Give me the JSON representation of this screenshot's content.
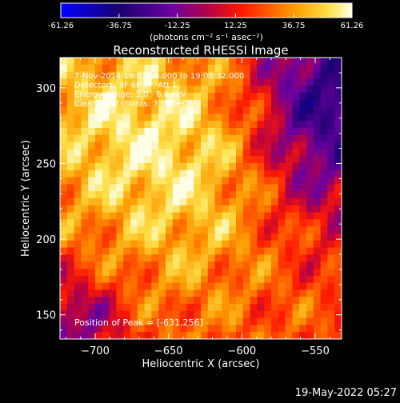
{
  "chart_data": {
    "type": "heatmap",
    "title": "Reconstructed RHESSI Image",
    "xlabel": "Heliocentric X (arcsec)",
    "ylabel": "Heliocentric Y (arcsec)",
    "xlim": [
      -724,
      -532
    ],
    "ylim": [
      134,
      320
    ],
    "xticks": [
      -700,
      -650,
      -600,
      -550
    ],
    "yticks": [
      150,
      200,
      250,
      300
    ],
    "colorbar": {
      "ticks": [
        -61.26,
        -36.75,
        -12.25,
        12.25,
        36.75,
        61.26
      ],
      "min": -61.26,
      "max": 61.26,
      "unit_label": "(photons cm⁻² s⁻¹ asec⁻²)"
    },
    "annotations": [
      "7-Nov-2014 19:02:36.000 to 19:08:32.000",
      "Detectors: 3F 6F 9F, Att 1",
      "Energy Range: 3.0 - 6.0 keV",
      "Clean     Total counts: 3.01E+03"
    ],
    "peak_label": "Position of Peak = [-631,256]",
    "peak": {
      "x": -631,
      "y": 256
    },
    "timestamp": "19-May-2022 05:27"
  }
}
